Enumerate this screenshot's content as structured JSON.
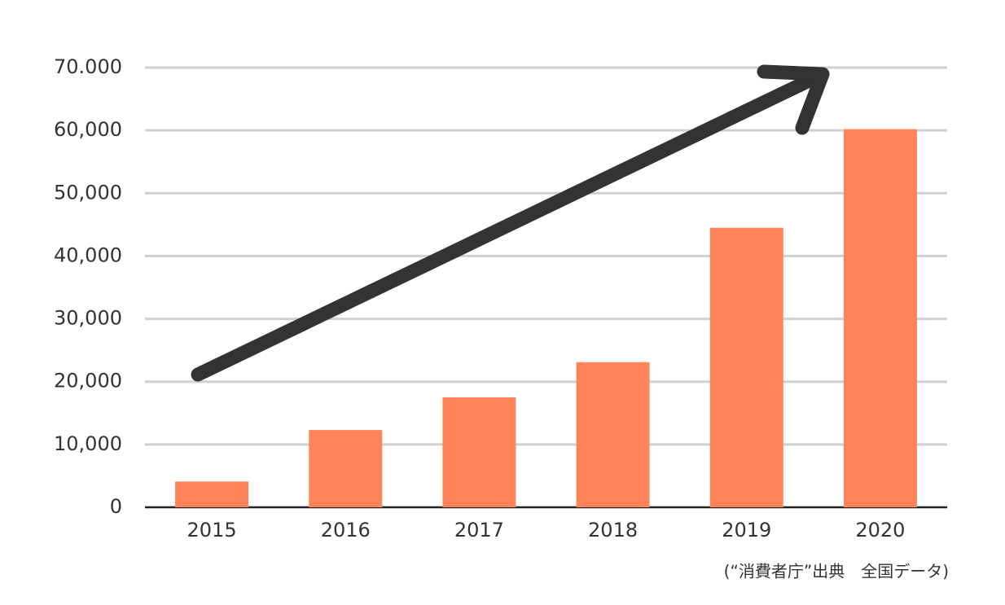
{
  "chart_data": {
    "type": "bar",
    "categories": [
      "2015",
      "2016",
      "2017",
      "2018",
      "2019",
      "2020"
    ],
    "values": [
      4100,
      12300,
      17500,
      23100,
      44500,
      60200
    ],
    "color": "#ff8459",
    "ylim": [
      0,
      70000
    ],
    "yticks": [
      0,
      {
        "value": 10000,
        "label": "10,000"
      },
      {
        "value": 20000,
        "label": "20,000"
      },
      {
        "value": 30000,
        "label": "30,000"
      },
      {
        "value": 40000,
        "label": "40,000"
      },
      {
        "value": 50000,
        "label": "50,000"
      },
      {
        "value": 60000,
        "label": "60,000"
      },
      {
        "value": 70000,
        "label": "70.000"
      }
    ],
    "grid": true,
    "note": "(“消費者庁”出典　全国データ)"
  }
}
